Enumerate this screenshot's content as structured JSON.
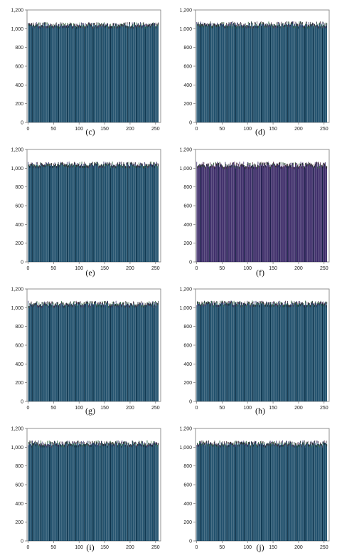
{
  "chart_data": [
    {
      "id": "c",
      "caption": "(c)",
      "type": "bar",
      "ylim": [
        0,
        1200
      ],
      "xlim": [
        -2,
        260
      ],
      "yticks": [
        0,
        200,
        400,
        600,
        800,
        "1,000",
        "1,200"
      ],
      "xticks": [
        0,
        50,
        100,
        150,
        200,
        250
      ],
      "bins": 256,
      "mean": 1045,
      "spread": 25,
      "fill": "#0b3f5e",
      "ytick_labels": [
        "0",
        "200",
        "400",
        "600",
        "800",
        "1,000",
        "1,200"
      ]
    },
    {
      "id": "d",
      "caption": "(d)",
      "type": "bar",
      "ylim": [
        0,
        1200
      ],
      "xlim": [
        -2,
        260
      ],
      "xticks": [
        0,
        50,
        100,
        150,
        200,
        250
      ],
      "bins": 256,
      "mean": 1050,
      "spread": 28,
      "fill": "#0b3f5e",
      "ytick_labels": [
        "0",
        "200",
        "400",
        "600",
        "800",
        "1,000",
        "1,200"
      ]
    },
    {
      "id": "e",
      "caption": "(e)",
      "type": "bar",
      "ylim": [
        0,
        1200
      ],
      "xlim": [
        -2,
        260
      ],
      "xticks": [
        0,
        50,
        100,
        150,
        200,
        250
      ],
      "bins": 256,
      "mean": 1045,
      "spread": 25,
      "fill": "#0b3f5e",
      "ytick_labels": [
        "0",
        "200",
        "400",
        "600",
        "800",
        "1,000",
        "1,200"
      ]
    },
    {
      "id": "f",
      "caption": "(f)",
      "type": "bar",
      "ylim": [
        0,
        1200
      ],
      "xlim": [
        -2,
        260
      ],
      "xticks": [
        0,
        50,
        100,
        150,
        200,
        250
      ],
      "bins": 256,
      "mean": 1040,
      "spread": 30,
      "fill": "#2c1a5c",
      "ytick_labels": [
        "0",
        "200",
        "400",
        "600",
        "800",
        "1,000",
        "1,200"
      ]
    },
    {
      "id": "g",
      "caption": "(g)",
      "type": "bar",
      "ylim": [
        0,
        1200
      ],
      "xlim": [
        -2,
        260
      ],
      "xticks": [
        0,
        50,
        100,
        150,
        200,
        250
      ],
      "bins": 256,
      "mean": 1045,
      "spread": 28,
      "fill": "#0b3f5e",
      "ytick_labels": [
        "0",
        "200",
        "400",
        "600",
        "800",
        "1,000",
        "1,200"
      ]
    },
    {
      "id": "h",
      "caption": "(h)",
      "type": "bar",
      "ylim": [
        0,
        1200
      ],
      "xlim": [
        -2,
        260
      ],
      "xticks": [
        0,
        50,
        100,
        150,
        200,
        250
      ],
      "bins": 256,
      "mean": 1050,
      "spread": 25,
      "fill": "#0b3f5e",
      "ytick_labels": [
        "0",
        "200",
        "400",
        "600",
        "800",
        "1,000",
        "1,200"
      ]
    },
    {
      "id": "i",
      "caption": "(i)",
      "type": "bar",
      "ylim": [
        0,
        1200
      ],
      "xlim": [
        -2,
        260
      ],
      "xticks": [
        0,
        50,
        100,
        150,
        200,
        250
      ],
      "bins": 256,
      "mean": 1045,
      "spread": 28,
      "fill": "#0b3f5e",
      "ytick_labels": [
        "0",
        "200",
        "400",
        "600",
        "800",
        "1,000",
        "1,200"
      ]
    },
    {
      "id": "j",
      "caption": "(j)",
      "type": "bar",
      "ylim": [
        0,
        1200
      ],
      "xlim": [
        -2,
        260
      ],
      "xticks": [
        0,
        50,
        100,
        150,
        200,
        250
      ],
      "bins": 256,
      "mean": 1045,
      "spread": 28,
      "fill": "#0b3f5e",
      "ytick_labels": [
        "0",
        "200",
        "400",
        "600",
        "800",
        "1,000",
        "1,200"
      ]
    }
  ]
}
